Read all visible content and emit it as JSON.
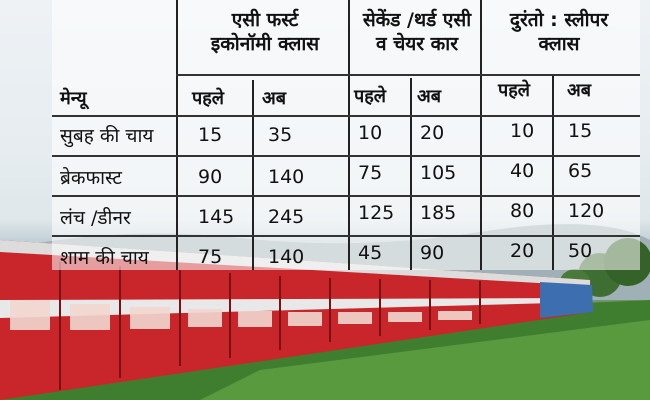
{
  "table": {
    "menu_header": "मेन्यू",
    "groups": [
      {
        "title_line1": "एसी फर्स्ट",
        "title_line2": "इकोनॉमी क्लास",
        "before": "पहले",
        "after": "अब"
      },
      {
        "title_line1": "सेकेंड /थर्ड एसी",
        "title_line2": "व चेयर कार",
        "before": "पहले",
        "after": "अब"
      },
      {
        "title_line1": "दुरंतो : स्लीपर",
        "title_line2": "क्लास",
        "before": "पहले",
        "after": "अब"
      }
    ],
    "rows": [
      {
        "label": "सुबह की चाय",
        "values": [
          "15",
          "35",
          "10",
          "20",
          "10",
          "15"
        ]
      },
      {
        "label": "ब्रेकफास्ट",
        "values": [
          "90",
          "140",
          "75",
          "105",
          "40",
          "65"
        ]
      },
      {
        "label": "लंच /डीनर",
        "values": [
          "145",
          "245",
          "125",
          "185",
          "80",
          "120"
        ]
      },
      {
        "label": "शाम की चाय",
        "values": [
          "75",
          "140",
          "45",
          "90",
          "20",
          "50"
        ]
      }
    ]
  },
  "colors": {
    "train_red": "#c8262a",
    "grass": "#4f8a3f"
  }
}
